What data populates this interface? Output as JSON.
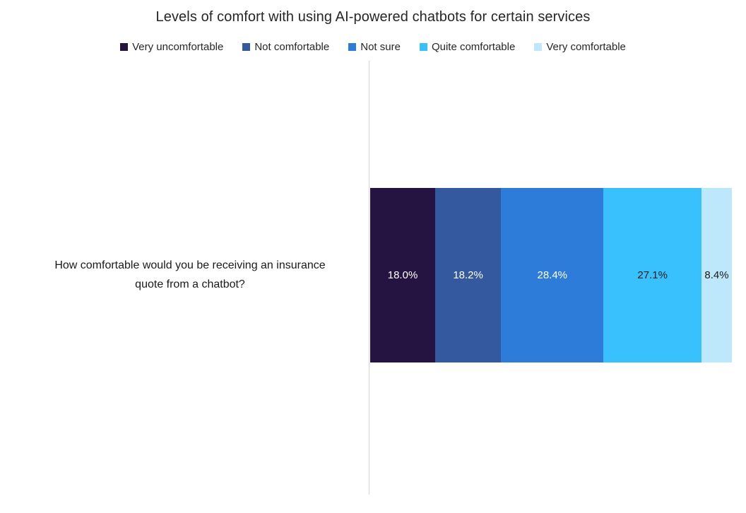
{
  "title": "Levels of comfort with using AI-powered chatbots for certain services",
  "chart_data": {
    "type": "bar",
    "orientation": "horizontal-stacked",
    "title": "Levels of comfort with using AI-powered chatbots for certain services",
    "categories": [
      "How comfortable would you be receiving an insurance quote from a chatbot?"
    ],
    "series": [
      {
        "name": "Very uncomfortable",
        "values": [
          18.0
        ],
        "label": "18.0%",
        "color": "#251442",
        "label_color": "#ffffff"
      },
      {
        "name": "Not comfortable",
        "values": [
          18.2
        ],
        "label": "18.2%",
        "color": "#35599f",
        "label_color": "#ffffff"
      },
      {
        "name": "Not sure",
        "values": [
          28.4
        ],
        "label": "28.4%",
        "color": "#2e7cd9",
        "label_color": "#ffffff"
      },
      {
        "name": "Quite comfortable",
        "values": [
          27.1
        ],
        "label": "27.1%",
        "color": "#38c1fc",
        "label_color": "#1a1a1a"
      },
      {
        "name": "Very comfortable",
        "values": [
          8.4
        ],
        "label": "8.4%",
        "color": "#bde8fb",
        "label_color": "#1a1a1a"
      }
    ],
    "xlim": [
      0,
      100
    ],
    "legend_position": "top",
    "grid": false,
    "axis_line_color": "#d6d6d6"
  }
}
